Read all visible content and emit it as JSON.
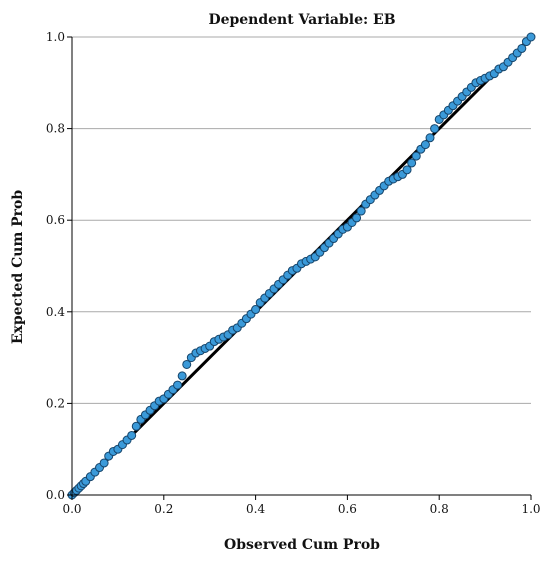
{
  "chart_data": {
    "type": "scatter",
    "title": "Dependent Variable: EB",
    "xlabel": "Observed Cum Prob",
    "ylabel": "Expected Cum Prob",
    "xlim": [
      0,
      1
    ],
    "ylim": [
      0,
      1
    ],
    "x_ticks": [
      "0.0",
      "0.2",
      "0.4",
      "0.6",
      "0.8",
      "1.0"
    ],
    "y_ticks": [
      "0.0",
      "0.2",
      "0.4",
      "0.6",
      "0.8",
      "1.0"
    ],
    "grid": "horizontal",
    "reference_line": [
      [
        0,
        0
      ],
      [
        1,
        1
      ]
    ],
    "colors": {
      "point_fill": "#3b9ad9",
      "point_edge": "#16456b",
      "reference_line": "#000000",
      "grid": "#a9a9a9"
    },
    "series": [
      {
        "x": [
          0.0,
          0.005,
          0.01,
          0.015,
          0.02,
          0.025,
          0.03,
          0.04,
          0.05,
          0.06,
          0.07,
          0.08,
          0.09,
          0.1,
          0.11,
          0.12,
          0.13,
          0.14,
          0.15,
          0.16,
          0.17,
          0.18,
          0.19,
          0.2,
          0.21,
          0.22,
          0.23,
          0.24,
          0.25,
          0.26,
          0.27,
          0.28,
          0.29,
          0.3,
          0.31,
          0.32,
          0.33,
          0.34,
          0.35,
          0.36,
          0.37,
          0.38,
          0.39,
          0.4,
          0.41,
          0.42,
          0.43,
          0.44,
          0.45,
          0.46,
          0.47,
          0.48,
          0.49,
          0.5,
          0.51,
          0.52,
          0.53,
          0.54,
          0.55,
          0.56,
          0.57,
          0.58,
          0.59,
          0.6,
          0.61,
          0.62,
          0.63,
          0.64,
          0.65,
          0.66,
          0.67,
          0.68,
          0.69,
          0.7,
          0.71,
          0.72,
          0.73,
          0.74,
          0.75,
          0.76,
          0.77,
          0.78,
          0.79,
          0.8,
          0.81,
          0.82,
          0.83,
          0.84,
          0.85,
          0.86,
          0.87,
          0.88,
          0.89,
          0.9,
          0.91,
          0.92,
          0.93,
          0.94,
          0.95,
          0.96,
          0.97,
          0.98,
          0.99,
          1.0
        ],
        "y": [
          0.0,
          0.005,
          0.01,
          0.015,
          0.02,
          0.025,
          0.03,
          0.04,
          0.05,
          0.06,
          0.07,
          0.085,
          0.095,
          0.1,
          0.11,
          0.12,
          0.13,
          0.15,
          0.165,
          0.175,
          0.185,
          0.195,
          0.205,
          0.21,
          0.22,
          0.23,
          0.24,
          0.26,
          0.285,
          0.3,
          0.31,
          0.315,
          0.32,
          0.325,
          0.335,
          0.34,
          0.345,
          0.35,
          0.36,
          0.365,
          0.375,
          0.385,
          0.395,
          0.405,
          0.42,
          0.43,
          0.44,
          0.45,
          0.46,
          0.47,
          0.48,
          0.49,
          0.495,
          0.505,
          0.51,
          0.515,
          0.52,
          0.53,
          0.54,
          0.55,
          0.56,
          0.57,
          0.58,
          0.585,
          0.595,
          0.605,
          0.62,
          0.635,
          0.645,
          0.655,
          0.665,
          0.675,
          0.685,
          0.69,
          0.695,
          0.7,
          0.71,
          0.725,
          0.74,
          0.755,
          0.765,
          0.78,
          0.8,
          0.82,
          0.83,
          0.84,
          0.85,
          0.86,
          0.87,
          0.88,
          0.89,
          0.9,
          0.905,
          0.91,
          0.915,
          0.92,
          0.93,
          0.935,
          0.945,
          0.955,
          0.965,
          0.975,
          0.99,
          1.0
        ]
      }
    ]
  }
}
